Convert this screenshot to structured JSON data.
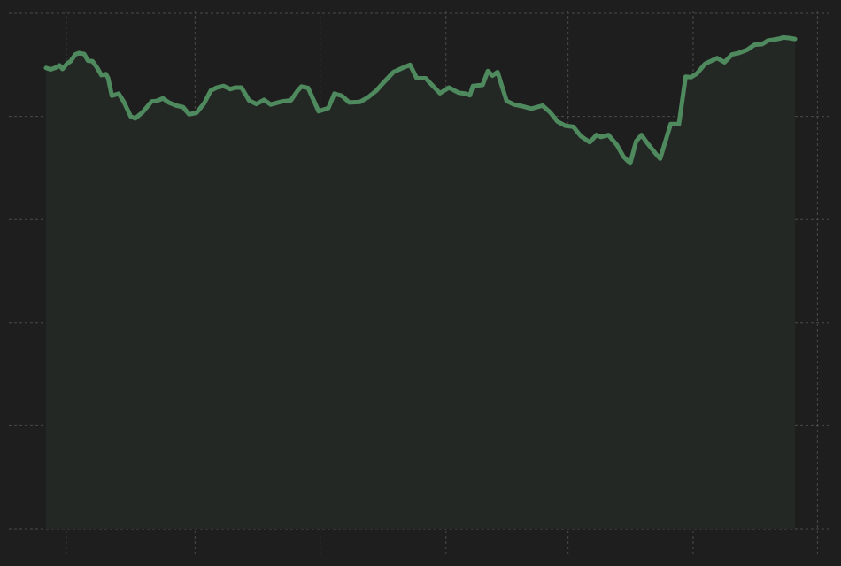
{
  "chart_data": {
    "type": "area",
    "title": "",
    "xlabel": "",
    "ylabel": "",
    "x_range": [
      0,
      100
    ],
    "ylim": [
      0,
      100
    ],
    "grid": true,
    "legend": "none",
    "x_gridlines": [
      2.7,
      19.9,
      36.6,
      53.4,
      69.7,
      86.4,
      103.0
    ],
    "y_gridlines": [
      0,
      20,
      40,
      60,
      80,
      100
    ],
    "series": [
      {
        "color": "#4e8a5e",
        "fill": "#232825",
        "points": [
          [
            0.0,
            89.4
          ],
          [
            0.6,
            89.1
          ],
          [
            1.2,
            89.4
          ],
          [
            1.8,
            89.9
          ],
          [
            2.2,
            89.2
          ],
          [
            2.8,
            90.2
          ],
          [
            3.3,
            90.7
          ],
          [
            3.9,
            92.0
          ],
          [
            4.4,
            92.3
          ],
          [
            5.1,
            92.1
          ],
          [
            5.6,
            90.8
          ],
          [
            6.2,
            90.7
          ],
          [
            6.8,
            89.5
          ],
          [
            7.4,
            88.0
          ],
          [
            8.0,
            88.2
          ],
          [
            8.3,
            87.4
          ],
          [
            8.8,
            84.0
          ],
          [
            9.7,
            84.4
          ],
          [
            10.4,
            82.8
          ],
          [
            11.3,
            80.0
          ],
          [
            11.9,
            79.6
          ],
          [
            12.9,
            80.8
          ],
          [
            14.1,
            82.9
          ],
          [
            14.8,
            83.0
          ],
          [
            15.6,
            83.5
          ],
          [
            16.4,
            82.7
          ],
          [
            17.4,
            82.1
          ],
          [
            18.3,
            81.8
          ],
          [
            19.1,
            80.4
          ],
          [
            20.1,
            80.7
          ],
          [
            21.1,
            82.5
          ],
          [
            22.0,
            85.0
          ],
          [
            22.8,
            85.6
          ],
          [
            23.7,
            85.9
          ],
          [
            24.6,
            85.3
          ],
          [
            25.3,
            85.6
          ],
          [
            26.1,
            85.6
          ],
          [
            27.1,
            83.1
          ],
          [
            28.1,
            82.4
          ],
          [
            29.1,
            83.2
          ],
          [
            30.0,
            82.3
          ],
          [
            31.5,
            82.9
          ],
          [
            32.7,
            83.1
          ],
          [
            33.6,
            85.0
          ],
          [
            34.1,
            85.8
          ],
          [
            35.0,
            85.5
          ],
          [
            36.4,
            81.0
          ],
          [
            37.7,
            81.6
          ],
          [
            38.5,
            84.4
          ],
          [
            39.5,
            84.0
          ],
          [
            40.5,
            82.7
          ],
          [
            41.9,
            82.8
          ],
          [
            43.0,
            83.7
          ],
          [
            44.1,
            85.0
          ],
          [
            45.1,
            86.6
          ],
          [
            46.4,
            88.6
          ],
          [
            47.6,
            89.4
          ],
          [
            48.6,
            90.0
          ],
          [
            49.5,
            87.4
          ],
          [
            50.7,
            87.4
          ],
          [
            51.4,
            86.3
          ],
          [
            52.6,
            84.5
          ],
          [
            53.8,
            85.6
          ],
          [
            55.1,
            84.6
          ],
          [
            56.0,
            84.4
          ],
          [
            56.6,
            84.1
          ],
          [
            57.0,
            85.9
          ],
          [
            58.3,
            86.1
          ],
          [
            59.0,
            88.8
          ],
          [
            59.6,
            87.9
          ],
          [
            60.3,
            88.6
          ],
          [
            60.8,
            86.2
          ],
          [
            61.5,
            83.0
          ],
          [
            62.5,
            82.3
          ],
          [
            63.5,
            82.0
          ],
          [
            64.8,
            81.5
          ],
          [
            66.3,
            82.1
          ],
          [
            67.3,
            80.8
          ],
          [
            68.3,
            79.0
          ],
          [
            69.3,
            78.2
          ],
          [
            70.4,
            78.0
          ],
          [
            71.4,
            76.2
          ],
          [
            72.6,
            75.0
          ],
          [
            73.5,
            76.4
          ],
          [
            74.1,
            76.0
          ],
          [
            75.1,
            76.4
          ],
          [
            76.2,
            74.5
          ],
          [
            77.1,
            72.2
          ],
          [
            78.0,
            70.9
          ],
          [
            78.8,
            75.2
          ],
          [
            79.5,
            76.4
          ],
          [
            80.3,
            74.8
          ],
          [
            81.4,
            72.8
          ],
          [
            82.0,
            71.8
          ],
          [
            83.4,
            78.5
          ],
          [
            84.5,
            78.5
          ],
          [
            85.4,
            87.7
          ],
          [
            86.1,
            87.6
          ],
          [
            86.9,
            88.3
          ],
          [
            88.0,
            90.2
          ],
          [
            89.6,
            91.3
          ],
          [
            90.6,
            90.5
          ],
          [
            91.6,
            92.0
          ],
          [
            92.5,
            92.3
          ],
          [
            93.6,
            92.9
          ],
          [
            94.6,
            93.9
          ],
          [
            95.6,
            94.0
          ],
          [
            96.4,
            94.7
          ],
          [
            97.3,
            94.9
          ],
          [
            98.0,
            95.1
          ],
          [
            98.4,
            95.3
          ],
          [
            99.2,
            95.2
          ],
          [
            100.0,
            95.0
          ]
        ]
      }
    ]
  }
}
